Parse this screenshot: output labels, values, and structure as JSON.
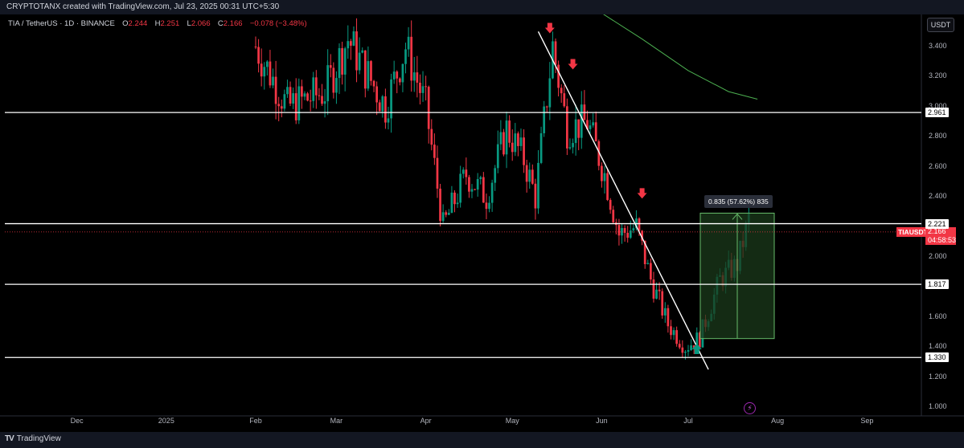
{
  "header": {
    "attribution": "CRYPTOTANX created with TradingView.com, Jul 23, 2025 00:31 UTC+5:30"
  },
  "legend": {
    "symbol": "TIA / TetherUS · 1D · BINANCE",
    "o_label": "O",
    "o_value": "2.244",
    "h_label": "H",
    "h_value": "2.251",
    "l_label": "L",
    "l_value": "2.066",
    "c_label": "C",
    "c_value": "2.166",
    "change": "−0.078 (−3.48%)"
  },
  "currency_button": "USDT",
  "price_axis": [
    "3.400",
    "3.200",
    "3.000",
    "2.800",
    "2.600",
    "2.400",
    "2.000",
    "1.600",
    "1.400",
    "1.200",
    "1.000"
  ],
  "levels": [
    {
      "label": "2.961",
      "value": 2.961
    },
    {
      "label": "2.221",
      "value": 2.221
    },
    {
      "label": "1.817",
      "value": 1.817
    },
    {
      "label": "1.330",
      "value": 1.33
    }
  ],
  "last_price": {
    "ticker": "TIAUSDT",
    "price": "2.166",
    "countdown": "04:58:53",
    "value": 2.166
  },
  "measure": {
    "label": "0.835 (57.62%) 835",
    "from_price": 1.456,
    "to_price": 2.291
  },
  "time_axis": [
    "Dec",
    "2025",
    "Feb",
    "Mar",
    "Apr",
    "May",
    "Jun",
    "Jul",
    "Aug",
    "Sep"
  ],
  "footer": {
    "brand": "TradingView",
    "logo": "TV"
  },
  "colors": {
    "up": "#089981",
    "down": "#f23645",
    "level_line": "#ffffff",
    "ma_line": "#4caf50",
    "measure_fill": "#1b3a1b",
    "measure_line": "#66bb6a"
  },
  "chart_data": {
    "type": "candlestick",
    "symbol": "TIAUSDT",
    "timeframe": "1D",
    "ylim": [
      0.95,
      3.6
    ],
    "price_path": [
      {
        "date": "2025-02-01",
        "price": 3.4
      },
      {
        "date": "2025-02-12",
        "price": 3.0
      },
      {
        "date": "2025-02-25",
        "price": 3.1
      },
      {
        "date": "2025-03-05",
        "price": 3.45
      },
      {
        "date": "2025-03-18",
        "price": 3.0
      },
      {
        "date": "2025-03-25",
        "price": 3.4
      },
      {
        "date": "2025-04-01",
        "price": 3.0
      },
      {
        "date": "2025-04-07",
        "price": 2.2
      },
      {
        "date": "2025-04-15",
        "price": 2.55
      },
      {
        "date": "2025-04-22",
        "price": 2.4
      },
      {
        "date": "2025-04-29",
        "price": 2.85
      },
      {
        "date": "2025-05-05",
        "price": 2.65
      },
      {
        "date": "2025-05-09",
        "price": 2.4
      },
      {
        "date": "2025-05-15",
        "price": 3.4
      },
      {
        "date": "2025-05-20",
        "price": 2.85
      },
      {
        "date": "2025-05-27",
        "price": 2.9
      },
      {
        "date": "2025-06-02",
        "price": 2.55
      },
      {
        "date": "2025-06-07",
        "price": 2.15
      },
      {
        "date": "2025-06-13",
        "price": 2.2
      },
      {
        "date": "2025-06-18",
        "price": 1.85
      },
      {
        "date": "2025-06-24",
        "price": 1.55
      },
      {
        "date": "2025-06-30",
        "price": 1.4
      },
      {
        "date": "2025-07-05",
        "price": 1.46
      },
      {
        "date": "2025-07-12",
        "price": 1.85
      },
      {
        "date": "2025-07-18",
        "price": 1.95
      },
      {
        "date": "2025-07-22",
        "price": 2.25
      }
    ],
    "trendline": [
      {
        "date": "2025-05-10",
        "price": 3.5
      },
      {
        "date": "2025-07-08",
        "price": 1.25
      }
    ],
    "down_arrows": [
      {
        "date": "2025-05-14",
        "price": 3.52
      },
      {
        "date": "2025-05-22",
        "price": 3.28
      },
      {
        "date": "2025-06-15",
        "price": 2.42
      }
    ],
    "up_arrows": [
      {
        "date": "2025-07-04",
        "price": 1.39
      }
    ],
    "moving_average": [
      {
        "date": "2025-05-29",
        "price": 3.66
      },
      {
        "date": "2025-06-15",
        "price": 3.45
      },
      {
        "date": "2025-07-01",
        "price": 3.24
      },
      {
        "date": "2025-07-15",
        "price": 3.1
      },
      {
        "date": "2025-07-25",
        "price": 3.05
      }
    ]
  }
}
